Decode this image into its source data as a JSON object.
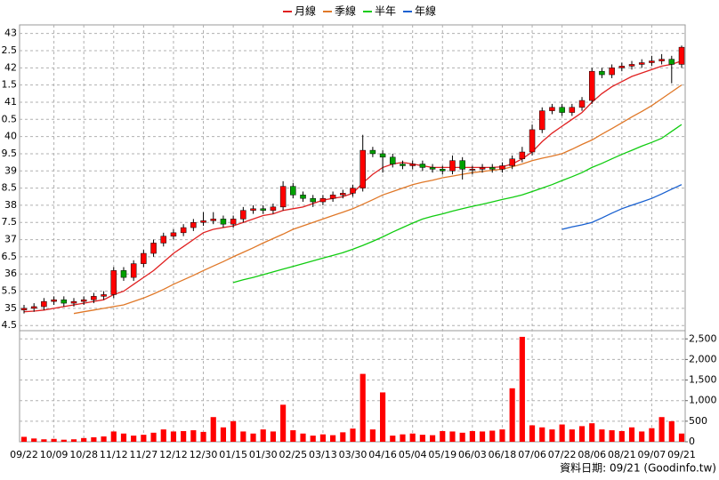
{
  "chart_data": {
    "type": "candlestick",
    "footer": "資料日期: 09/21 (Goodinfo.tw)",
    "categories": [
      "09/22",
      null,
      null,
      "10/09",
      null,
      null,
      "10/28",
      null,
      null,
      "11/12",
      null,
      null,
      "11/27",
      null,
      null,
      "12/12",
      null,
      null,
      "12/30",
      null,
      null,
      "01/15",
      null,
      null,
      "01/30",
      null,
      null,
      "02/25",
      null,
      null,
      "03/13",
      null,
      null,
      "03/30",
      null,
      null,
      "04/16",
      null,
      null,
      "05/04",
      null,
      null,
      "05/19",
      null,
      null,
      "06/03",
      null,
      null,
      "06/18",
      null,
      null,
      "07/06",
      null,
      null,
      "07/22",
      null,
      null,
      "08/06",
      null,
      null,
      "08/21",
      null,
      null,
      "09/07",
      null,
      null,
      "09/21"
    ],
    "open": [
      34.95,
      35.0,
      35.05,
      35.2,
      35.25,
      35.15,
      35.2,
      35.25,
      35.35,
      35.4,
      36.1,
      35.9,
      36.3,
      36.6,
      36.9,
      37.1,
      37.2,
      37.35,
      37.5,
      37.55,
      37.6,
      37.45,
      37.6,
      37.85,
      37.9,
      37.85,
      37.95,
      38.55,
      38.3,
      38.2,
      38.1,
      38.2,
      38.3,
      38.35,
      38.5,
      39.6,
      39.5,
      39.4,
      39.2,
      39.15,
      39.2,
      39.1,
      39.05,
      39.0,
      39.3,
      39.05,
      39.05,
      39.1,
      39.05,
      39.15,
      39.35,
      39.55,
      40.2,
      40.75,
      40.85,
      40.7,
      40.85,
      41.05,
      41.9,
      41.8,
      42.0,
      42.05,
      42.1,
      42.15,
      42.2,
      42.25,
      42.1
    ],
    "high": [
      35.1,
      35.15,
      35.3,
      35.35,
      35.35,
      35.3,
      35.35,
      35.45,
      35.5,
      36.2,
      36.2,
      36.4,
      36.7,
      37.0,
      37.2,
      37.3,
      37.45,
      37.6,
      37.8,
      37.8,
      37.7,
      37.7,
      37.95,
      38.0,
      38.0,
      38.05,
      38.7,
      38.65,
      38.4,
      38.3,
      38.3,
      38.4,
      38.45,
      38.6,
      40.05,
      39.7,
      39.6,
      39.5,
      39.3,
      39.3,
      39.3,
      39.2,
      39.15,
      39.45,
      39.4,
      39.15,
      39.2,
      39.2,
      39.25,
      39.45,
      39.7,
      40.35,
      40.85,
      40.95,
      40.95,
      40.95,
      41.15,
      42.0,
      42.0,
      42.1,
      42.15,
      42.2,
      42.25,
      42.35,
      42.4,
      42.35,
      42.65
    ],
    "low": [
      34.85,
      34.9,
      34.95,
      35.1,
      35.05,
      35.05,
      35.1,
      35.15,
      35.25,
      35.3,
      35.8,
      35.8,
      36.2,
      36.5,
      36.8,
      37.0,
      37.1,
      37.25,
      37.4,
      37.45,
      37.35,
      37.35,
      37.5,
      37.75,
      37.75,
      37.75,
      37.85,
      38.2,
      38.1,
      37.95,
      38.0,
      38.1,
      38.2,
      38.25,
      38.4,
      39.4,
      38.95,
      39.1,
      39.05,
      39.05,
      39.0,
      38.95,
      38.9,
      38.9,
      38.75,
      38.9,
      38.95,
      38.95,
      38.95,
      39.05,
      39.25,
      39.45,
      40.1,
      40.65,
      40.6,
      40.6,
      40.75,
      40.95,
      41.7,
      41.7,
      41.9,
      41.95,
      42.0,
      42.05,
      42.1,
      41.55,
      42.0
    ],
    "close": [
      35.0,
      35.05,
      35.2,
      35.25,
      35.15,
      35.2,
      35.25,
      35.35,
      35.4,
      36.1,
      35.9,
      36.3,
      36.6,
      36.9,
      37.1,
      37.2,
      37.35,
      37.5,
      37.55,
      37.6,
      37.45,
      37.6,
      37.85,
      37.9,
      37.85,
      37.95,
      38.55,
      38.3,
      38.2,
      38.1,
      38.2,
      38.3,
      38.35,
      38.5,
      39.6,
      39.5,
      39.4,
      39.2,
      39.15,
      39.2,
      39.1,
      39.05,
      39.0,
      39.3,
      39.05,
      39.05,
      39.1,
      39.05,
      39.15,
      39.35,
      39.55,
      40.2,
      40.75,
      40.85,
      40.7,
      40.85,
      41.05,
      41.9,
      41.8,
      42.0,
      42.05,
      42.1,
      42.15,
      42.2,
      42.25,
      42.1,
      42.6
    ],
    "up_color": "#ff0000",
    "down_color": "#00a000",
    "wick_color": "#000000",
    "series": [
      {
        "name": "月線",
        "color": "#e02020",
        "values": [
          34.9,
          34.92,
          34.95,
          35.0,
          35.05,
          35.1,
          35.15,
          35.2,
          35.25,
          35.4,
          35.5,
          35.7,
          35.9,
          36.1,
          36.35,
          36.6,
          36.8,
          37.0,
          37.2,
          37.3,
          37.35,
          37.4,
          37.5,
          37.6,
          37.7,
          37.75,
          37.85,
          37.9,
          37.95,
          38.05,
          38.15,
          38.2,
          38.25,
          38.35,
          38.65,
          38.9,
          39.1,
          39.2,
          39.25,
          39.2,
          39.15,
          39.1,
          39.1,
          39.1,
          39.1,
          39.1,
          39.1,
          39.1,
          39.12,
          39.2,
          39.35,
          39.55,
          39.85,
          40.1,
          40.3,
          40.5,
          40.7,
          41.0,
          41.25,
          41.45,
          41.6,
          41.75,
          41.85,
          41.95,
          42.05,
          42.1,
          42.2
        ]
      },
      {
        "name": "季線",
        "color": "#e07828",
        "values": [
          null,
          null,
          null,
          null,
          null,
          34.85,
          34.9,
          34.95,
          35.0,
          35.05,
          35.1,
          35.2,
          35.3,
          35.42,
          35.55,
          35.7,
          35.83,
          35.96,
          36.1,
          36.23,
          36.36,
          36.5,
          36.63,
          36.76,
          36.9,
          37.03,
          37.16,
          37.3,
          37.4,
          37.5,
          37.6,
          37.7,
          37.8,
          37.9,
          38.03,
          38.16,
          38.3,
          38.4,
          38.5,
          38.6,
          38.67,
          38.73,
          38.8,
          38.85,
          38.9,
          38.95,
          38.98,
          39.02,
          39.05,
          39.12,
          39.2,
          39.3,
          39.37,
          39.43,
          39.5,
          39.63,
          39.77,
          39.9,
          40.07,
          40.23,
          40.4,
          40.57,
          40.73,
          40.9,
          41.1,
          41.3,
          41.5
        ]
      },
      {
        "name": "半年",
        "color": "#10cc10",
        "values": [
          null,
          null,
          null,
          null,
          null,
          null,
          null,
          null,
          null,
          null,
          null,
          null,
          null,
          null,
          null,
          null,
          null,
          null,
          null,
          null,
          null,
          35.75,
          35.83,
          35.9,
          35.98,
          36.06,
          36.14,
          36.22,
          36.3,
          36.38,
          36.46,
          36.54,
          36.62,
          36.72,
          36.83,
          36.95,
          37.08,
          37.22,
          37.35,
          37.48,
          37.6,
          37.68,
          37.75,
          37.83,
          37.9,
          37.97,
          38.03,
          38.1,
          38.17,
          38.23,
          38.3,
          38.4,
          38.5,
          38.6,
          38.72,
          38.83,
          38.95,
          39.1,
          39.22,
          39.35,
          39.48,
          39.6,
          39.72,
          39.83,
          39.95,
          40.15,
          40.35
        ]
      },
      {
        "name": "年線",
        "color": "#1860d0",
        "values": [
          null,
          null,
          null,
          null,
          null,
          null,
          null,
          null,
          null,
          null,
          null,
          null,
          null,
          null,
          null,
          null,
          null,
          null,
          null,
          null,
          null,
          null,
          null,
          null,
          null,
          null,
          null,
          null,
          null,
          null,
          null,
          null,
          null,
          null,
          null,
          null,
          null,
          null,
          null,
          null,
          null,
          null,
          null,
          null,
          null,
          null,
          null,
          null,
          null,
          null,
          null,
          null,
          null,
          null,
          37.3,
          37.37,
          37.43,
          37.5,
          37.63,
          37.77,
          37.9,
          38.0,
          38.1,
          38.2,
          38.33,
          38.47,
          38.6
        ]
      }
    ],
    "ylim": [
      34.35,
      43.25
    ],
    "yticks": [
      {
        "value": 34.5,
        "label": "4.5"
      },
      35,
      {
        "value": 35.5,
        "label": "5.5"
      },
      36,
      {
        "value": 36.5,
        "label": "6.5"
      },
      37,
      {
        "value": 37.5,
        "label": "7.5"
      },
      38,
      {
        "value": 38.5,
        "label": "8.5"
      },
      39,
      {
        "value": 39.5,
        "label": "9.5"
      },
      40,
      {
        "value": 40.5,
        "label": "0.5"
      },
      41,
      {
        "value": 41.5,
        "label": "1.5"
      },
      42,
      {
        "value": 42.5,
        "label": "2.5"
      },
      43
    ],
    "grid": true,
    "volume": {
      "color": "#ff0000",
      "ylim": [
        0,
        2700
      ],
      "yticks": [
        0,
        500,
        {
          "value": 1000,
          "label": "1,000"
        },
        {
          "value": 1500,
          "label": "1,500"
        },
        {
          "value": 2000,
          "label": "2,000"
        },
        {
          "value": 2500,
          "label": "2,500"
        }
      ],
      "values": [
        120,
        80,
        60,
        70,
        50,
        60,
        90,
        110,
        130,
        250,
        200,
        150,
        170,
        220,
        300,
        250,
        260,
        280,
        240,
        600,
        350,
        500,
        250,
        200,
        300,
        250,
        900,
        280,
        200,
        150,
        180,
        160,
        230,
        320,
        1650,
        300,
        1200,
        150,
        180,
        200,
        170,
        160,
        260,
        250,
        220,
        260,
        250,
        270,
        300,
        1300,
        2550,
        400,
        350,
        300,
        420,
        300,
        380,
        450,
        300,
        280,
        260,
        350,
        250,
        330,
        600,
        500,
        200
      ]
    }
  }
}
